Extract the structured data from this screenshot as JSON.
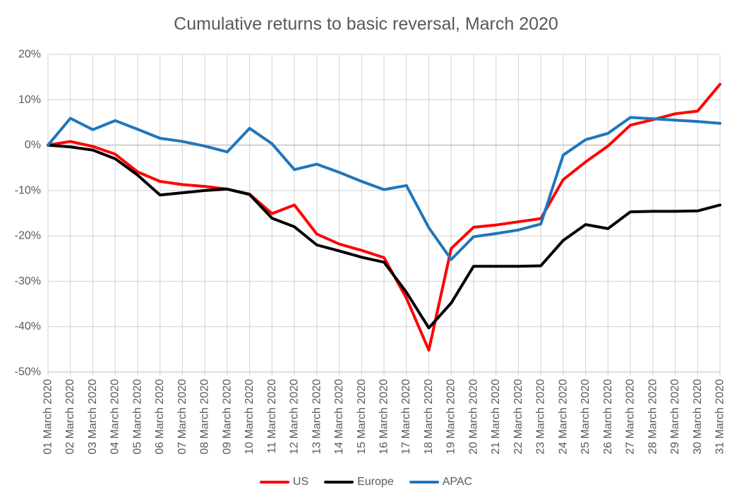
{
  "chart_data": {
    "type": "line",
    "title": "Cumulative returns to basic reversal, March 2020",
    "xlabel": "",
    "ylabel": "",
    "ylim": [
      -50,
      20
    ],
    "grid": "both",
    "legend_position": "bottom",
    "y_ticks": [
      {
        "value": 20,
        "label": "20%"
      },
      {
        "value": 10,
        "label": "10%"
      },
      {
        "value": 0,
        "label": "0%"
      },
      {
        "value": -10,
        "label": "-10%"
      },
      {
        "value": -20,
        "label": "-20%"
      },
      {
        "value": -30,
        "label": "-30%"
      },
      {
        "value": -40,
        "label": "-40%"
      },
      {
        "value": -50,
        "label": "-50%"
      }
    ],
    "categories": [
      "01 March 2020",
      "02 March 2020",
      "03 March 2020",
      "04 March 2020",
      "05 March 2020",
      "06 March 2020",
      "07 March 2020",
      "08 March 2020",
      "09 March 2020",
      "10 March 2020",
      "11 March 2020",
      "12 March 2020",
      "13 March 2020",
      "14 March 2020",
      "15 March 2020",
      "16 March 2020",
      "17 March 2020",
      "18 March 2020",
      "19 March 2020",
      "20 March 2020",
      "21 March 2020",
      "22 March 2020",
      "23 March 2020",
      "24 March 2020",
      "25 March 2020",
      "26 March 2020",
      "27 March 2020",
      "28 March 2020",
      "29 March 2020",
      "30 March 2020",
      "31 March 2020"
    ],
    "series": [
      {
        "name": "US",
        "color": "#FF0000",
        "values": [
          0,
          0.8,
          -0.3,
          -2.0,
          -5.9,
          -8.0,
          -8.7,
          -9.1,
          -9.7,
          -10.8,
          -15.1,
          -13.2,
          -19.6,
          -21.8,
          -23.2,
          -24.8,
          -33.7,
          -45.2,
          -22.8,
          -18.1,
          -17.6,
          -16.9,
          -16.2,
          -7.6,
          -3.7,
          -0.2,
          4.4,
          5.6,
          6.9,
          7.5,
          13.4
        ]
      },
      {
        "name": "Europe",
        "color": "#000000",
        "values": [
          0,
          -0.4,
          -1.1,
          -3.0,
          -6.6,
          -11.0,
          -10.5,
          -10.0,
          -9.7,
          -10.9,
          -16.1,
          -18.0,
          -22.0,
          -23.3,
          -24.7,
          -25.8,
          -32.4,
          -40.3,
          -34.8,
          -26.7,
          -26.7,
          -26.7,
          -26.6,
          -21.0,
          -17.5,
          -18.4,
          -14.7,
          -14.6,
          -14.6,
          -14.5,
          -13.2
        ]
      },
      {
        "name": "APAC",
        "color": "#1F76BC",
        "values": [
          0,
          5.9,
          3.4,
          5.4,
          3.5,
          1.5,
          0.8,
          -0.2,
          -1.5,
          3.7,
          0.3,
          -5.4,
          -4.2,
          -6.0,
          -8.0,
          -9.8,
          -8.9,
          -18.2,
          -25.2,
          -20.2,
          -19.5,
          -18.7,
          -17.4,
          -2.2,
          1.2,
          2.6,
          6.1,
          5.8,
          5.5,
          5.2,
          4.8
        ]
      }
    ]
  },
  "style_colors": {
    "title_text": "#595959",
    "axis_text": "#595959",
    "gridline": "#D9D9D9",
    "zero_line": "#C6C6C6",
    "axis_line": "#D0D0D0"
  }
}
